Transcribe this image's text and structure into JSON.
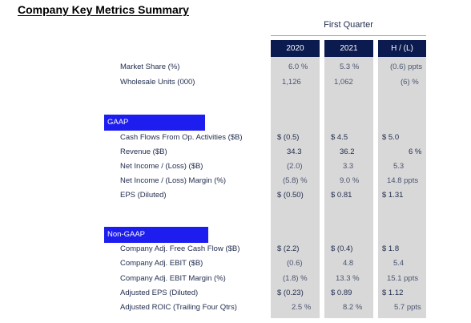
{
  "title": "Company Key Metrics Summary",
  "group_header": "First Quarter",
  "columns": [
    "2020",
    "2021",
    "H / (L)"
  ],
  "rows_top": [
    {
      "label": "Market Share (%)",
      "c2020": "6.0  %",
      "c2021": "5.3  %",
      "hl": "(0.6) ppts"
    },
    {
      "label": "Wholesale Units (000)",
      "c2020": "1,126",
      "c2021": "1,062",
      "hl": "(6) %"
    }
  ],
  "gaap": {
    "section_label": "GAAP",
    "rows": [
      {
        "label": "Cash Flows From Op. Activities ($B)",
        "c2020": "$  (0.5)",
        "c2021": "$   4.5",
        "hl": "$  5.0"
      },
      {
        "label": "Revenue ($B)",
        "c2020": "34.3",
        "c2021": "36.2",
        "hl": "6  %"
      },
      {
        "label": "Net Income / (Loss) ($B)",
        "c2020": "(2.0)",
        "c2021": "3.3",
        "hl": "5.3"
      },
      {
        "label": "Net Income / (Loss) Margin (%)",
        "c2020": "(5.8) %",
        "c2021": "9.0  %",
        "hl": "14.8  ppts"
      },
      {
        "label": "EPS (Diluted)",
        "c2020": "$ (0.50)",
        "c2021": "$  0.81",
        "hl": "$  1.31"
      }
    ]
  },
  "non_gaap": {
    "section_label": "Non-GAAP",
    "rows": [
      {
        "label": "Company Adj. Free Cash Flow ($B)",
        "c2020": "$  (2.2)",
        "c2021": "$  (0.4)",
        "hl": "$  1.8"
      },
      {
        "label": "Company Adj. EBIT ($B)",
        "c2020": "(0.6)",
        "c2021": "4.8",
        "hl": "5.4"
      },
      {
        "label": "Company Adj. EBIT Margin (%)",
        "c2020": "(1.8) %",
        "c2021": "13.3  %",
        "hl": "15.1  ppts"
      },
      {
        "label": "Adjusted EPS (Diluted)",
        "c2020": "$ (0.23)",
        "c2021": "$  0.89",
        "hl": "$  1.12"
      },
      {
        "label": "Adjusted ROIC (Trailing Four Qtrs)",
        "c2020": "2.5  %",
        "c2021": "8.2  %",
        "hl": "5.7  ppts"
      }
    ]
  },
  "colors": {
    "header_navy": "#0b1a4f",
    "section_blue": "#1d1df0",
    "column_shade": "#d8d8d8"
  }
}
